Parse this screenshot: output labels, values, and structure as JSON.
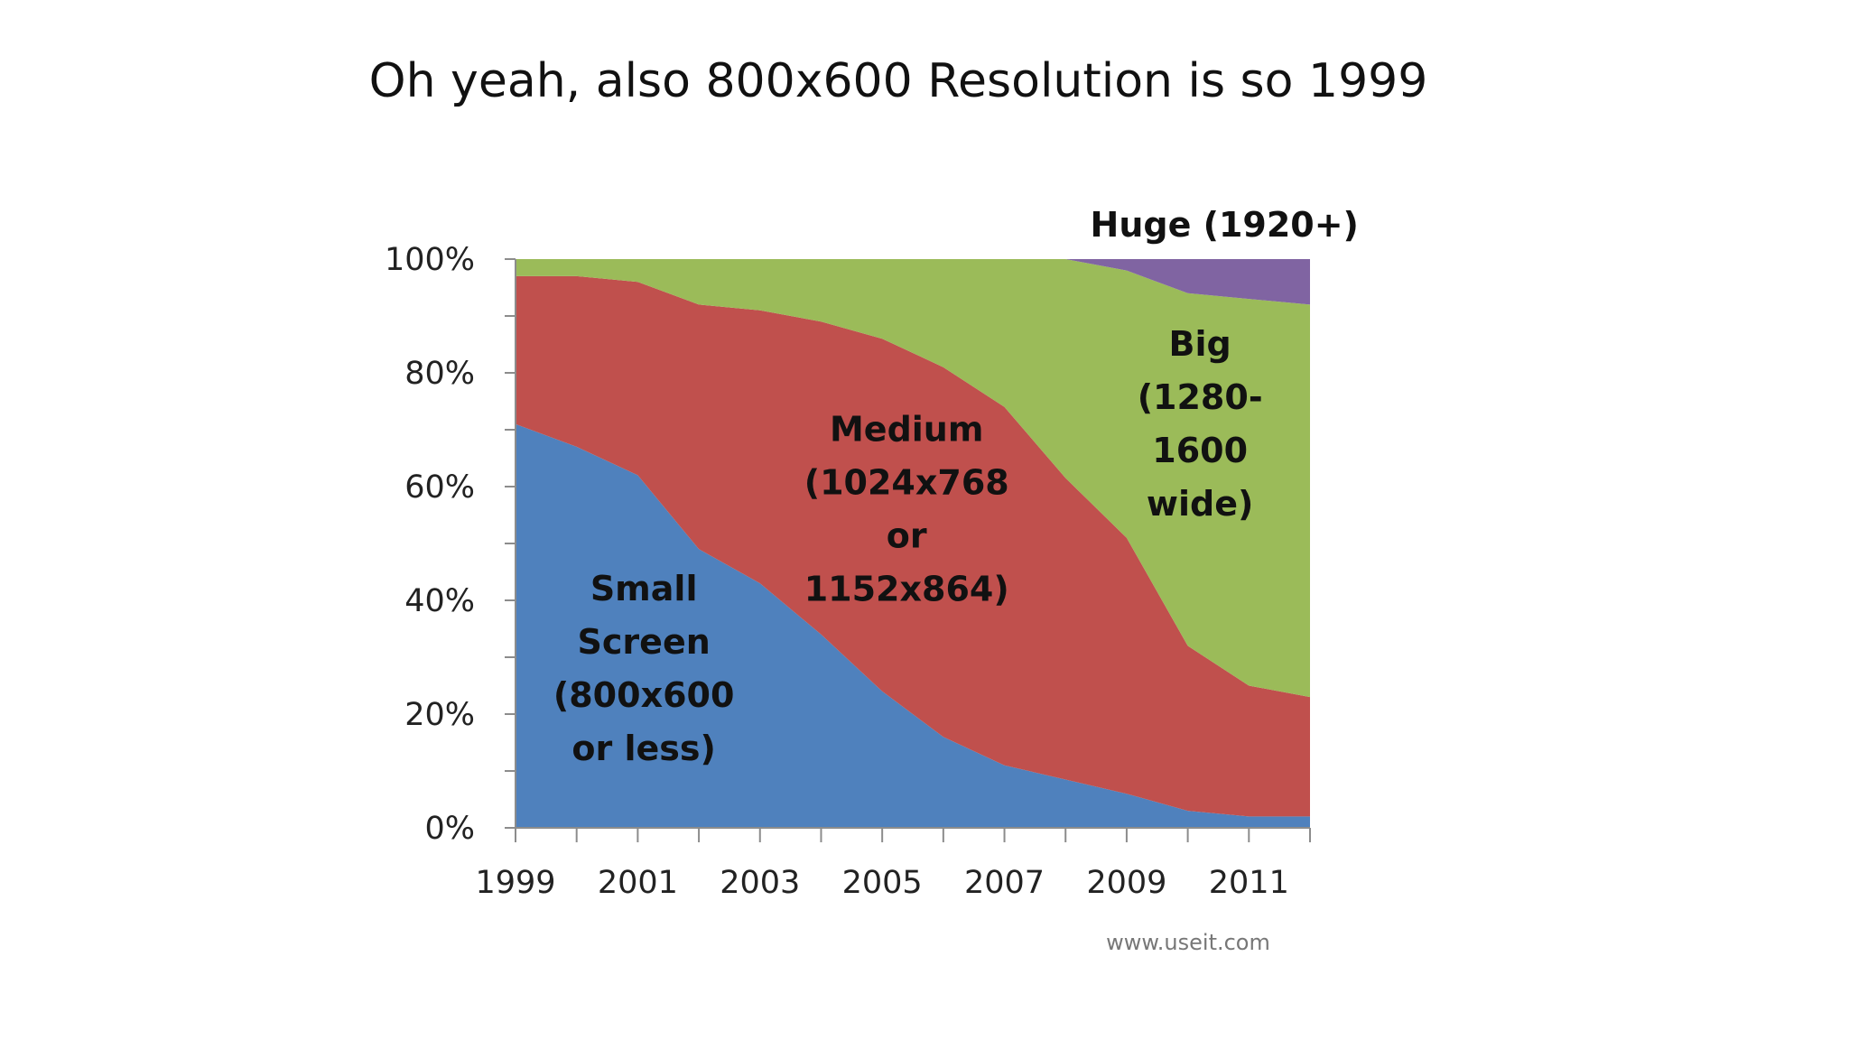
{
  "slide": {
    "title": "Oh yeah, also 800x600 Resolution is so 1999"
  },
  "chart_data": {
    "type": "area",
    "stacked": true,
    "percent": true,
    "x": [
      1999,
      2000,
      2001,
      2002,
      2003,
      2004,
      2005,
      2006,
      2007,
      2008,
      2009,
      2010,
      2011,
      2012
    ],
    "x_tick_labels": [
      "1999",
      "2001",
      "2003",
      "2005",
      "2007",
      "2009",
      "2011"
    ],
    "y_tick_labels": [
      "0%",
      "20%",
      "40%",
      "60%",
      "80%",
      "100%"
    ],
    "xlim": [
      1999,
      2012
    ],
    "ylim": [
      0,
      100
    ],
    "grid": false,
    "series": [
      {
        "key": "small",
        "label_lines": [
          "Small",
          "Screen",
          "(800x600",
          "or less)"
        ],
        "color": "#4F81BD",
        "values": [
          71,
          67,
          62,
          49,
          43,
          34,
          24,
          16,
          11,
          8.5,
          6,
          3,
          2,
          2
        ],
        "label_pos": [
          2001.1,
          40
        ]
      },
      {
        "key": "medium",
        "label_lines": [
          "Medium",
          "(1024x768",
          "or",
          "1152x864)"
        ],
        "color": "#C0504D",
        "values": [
          26,
          30,
          34,
          43,
          48,
          55,
          62,
          65,
          63,
          53,
          45,
          29,
          23,
          21
        ],
        "label_pos": [
          2005.4,
          68
        ]
      },
      {
        "key": "big",
        "label_lines": [
          "Big",
          "(1280-",
          "1600",
          "wide)"
        ],
        "color": "#9BBB59",
        "values": [
          3,
          3,
          4,
          8,
          9,
          11,
          14,
          19,
          26,
          38.5,
          47,
          62,
          68,
          69
        ],
        "label_pos": [
          2010.2,
          83
        ]
      },
      {
        "key": "huge",
        "label_lines": [
          "Huge (1920+)"
        ],
        "color": "#8064A2",
        "values": [
          0,
          0,
          0,
          0,
          0,
          0,
          0,
          0,
          0,
          0,
          2,
          6,
          7,
          8
        ],
        "label_pos": [
          2010.6,
          104
        ]
      }
    ],
    "source": "www.useit.com"
  }
}
